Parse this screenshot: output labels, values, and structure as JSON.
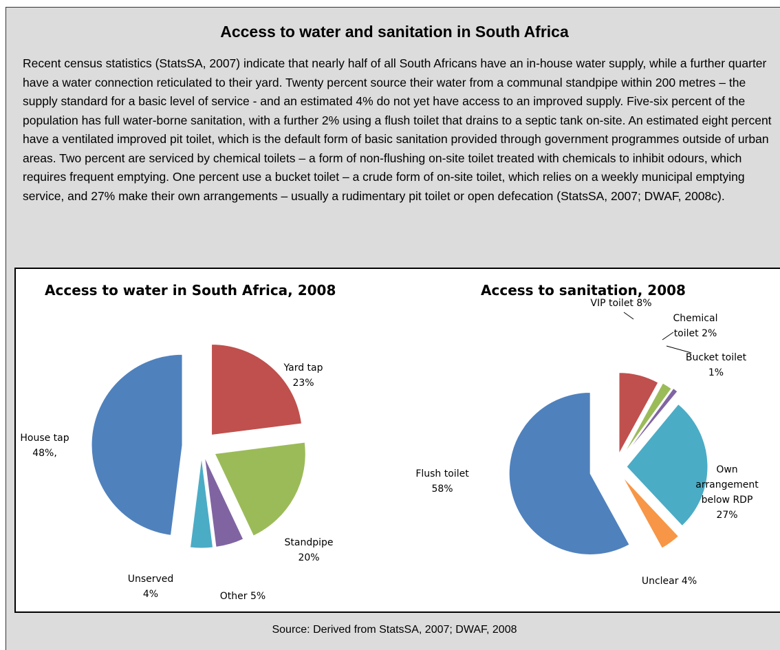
{
  "box": {
    "title": "Access to water and sanitation in South Africa",
    "body": "Recent census statistics (StatsSA, 2007) indicate that nearly half of all South Africans have an in-house water supply, while a further quarter have a water connection reticulated to their yard.   Twenty percent source their water from a communal standpipe within 200 metres – the supply standard for a basic level of service -  and an estimated 4% do not yet have access to an improved supply.   Five-six percent of the population has full water-borne sanitation, with a further 2% using a flush toilet that drains to a septic tank on-site.  An estimated eight percent have a ventilated improved pit toilet, which is the default form of basic sanitation provided through government programmes outside of urban areas.  Two percent are serviced by chemical toilets – a form of non-flushing on-site toilet treated with chemicals to inhibit odours, which requires frequent emptying.  One percent use a bucket toilet – a crude form of on-site toilet, which relies on a weekly municipal emptying service, and 27% make their own arrangements – usually a rudimentary pit toilet or open defecation (StatsSA, 2007; DWAF, 2008c).",
    "source": "Source:  Derived from StatsSA, 2007;  DWAF, 2008"
  },
  "chart_data": [
    {
      "type": "pie",
      "title": "Access to water in South Africa, 2008",
      "exploded": true,
      "slices": [
        {
          "name": "Yard tap",
          "value": 23,
          "label_lines": [
            "Yard tap",
            "23%"
          ],
          "color": "#c0504d"
        },
        {
          "name": "Standpipe",
          "value": 20,
          "label_lines": [
            "Standpipe",
            "20%"
          ],
          "color": "#9bbb59"
        },
        {
          "name": "Other",
          "value": 5,
          "label_lines": [
            "Other 5%"
          ],
          "color": "#8064a2"
        },
        {
          "name": "Unserved",
          "value": 4,
          "label_lines": [
            "Unserved",
            "4%"
          ],
          "color": "#4bacc6"
        },
        {
          "name": "House tap",
          "value": 48,
          "label_lines": [
            "House tap",
            "48%,"
          ],
          "color": "#4f81bd"
        }
      ]
    },
    {
      "type": "pie",
      "title": "Access to sanitation, 2008",
      "exploded": true,
      "slices": [
        {
          "name": "VIP toilet",
          "value": 8,
          "label_lines": [
            "VIP toilet  8%"
          ],
          "color": "#c0504d"
        },
        {
          "name": "Chemical toilet",
          "value": 2,
          "label_lines": [
            "Chemical",
            "toilet 2%"
          ],
          "color": "#9bbb59"
        },
        {
          "name": "Bucket toilet",
          "value": 1,
          "label_lines": [
            "Bucket toilet",
            "1%"
          ],
          "color": "#8064a2"
        },
        {
          "name": "Own arrangement below RDP",
          "value": 27,
          "label_lines": [
            "Own",
            "arrangement",
            "below RDP",
            "27%"
          ],
          "color": "#4bacc6"
        },
        {
          "name": "Unclear",
          "value": 4,
          "label_lines": [
            "Unclear 4%"
          ],
          "color": "#f79646"
        },
        {
          "name": "Flush toilet",
          "value": 58,
          "label_lines": [
            "Flush toilet",
            "58%"
          ],
          "color": "#4f81bd"
        }
      ]
    }
  ]
}
